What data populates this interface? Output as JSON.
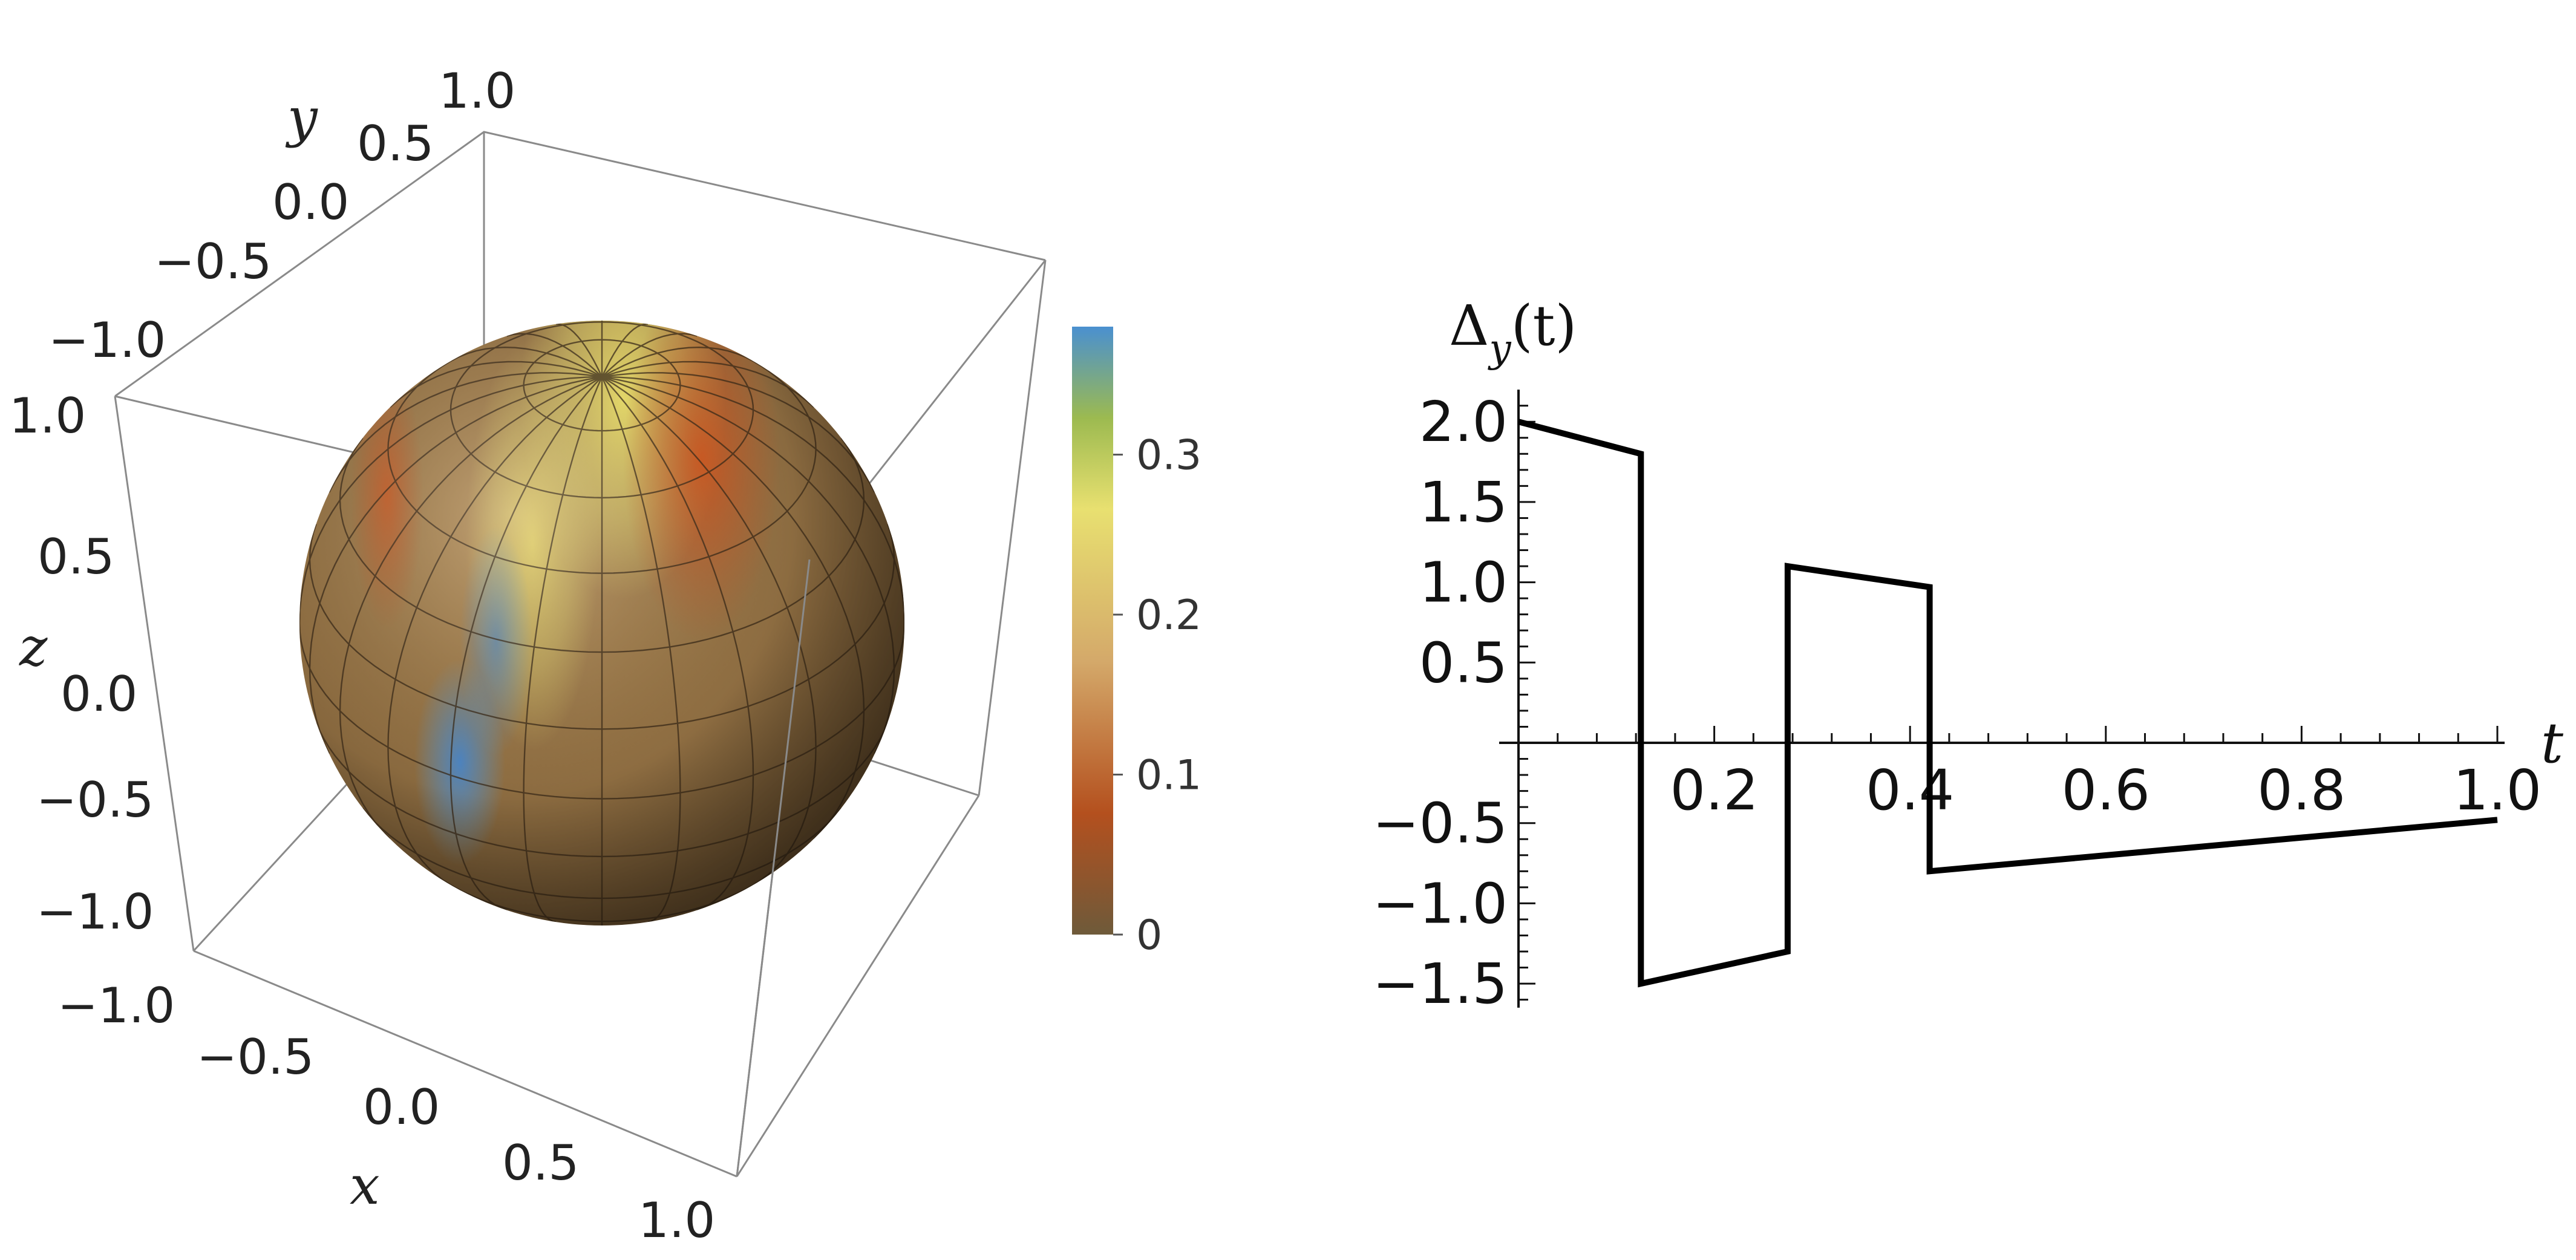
{
  "chart_data": [
    {
      "type": "surface3d",
      "description": "unit sphere colored by a scalar field with colorbar",
      "axes": {
        "x": {
          "label": "x",
          "range": [
            -1.0,
            1.0
          ],
          "ticks": [
            "−1.0",
            "−0.5",
            "0.0",
            "0.5",
            "1.0"
          ]
        },
        "y": {
          "label": "y",
          "range": [
            -1.0,
            1.0
          ],
          "ticks": [
            "−1.0",
            "−0.5",
            "0.0",
            "0.5",
            "1.0"
          ]
        },
        "z": {
          "label": "z",
          "range": [
            -1.0,
            1.0
          ],
          "ticks": [
            "−1.0",
            "−0.5",
            "0.0",
            "0.5",
            "1.0"
          ]
        }
      },
      "colorbar": {
        "range": [
          0,
          0.38
        ],
        "ticks": [
          "0",
          "0.1",
          "0.2",
          "0.3"
        ],
        "tick_values": [
          0,
          0.1,
          0.2,
          0.3
        ],
        "stops": [
          "#6e5a3a",
          "#b4501e",
          "#d4a96a",
          "#e8e070",
          "#9cba50",
          "#4a90d0"
        ]
      }
    },
    {
      "type": "line",
      "title": "",
      "xlabel": "t",
      "ylabel_base": "Δ",
      "ylabel_sub": "y",
      "ylabel_rest": "(t)",
      "xlim": [
        0,
        1.0
      ],
      "ylim": [
        -1.65,
        2.2
      ],
      "x_ticks": [
        0.2,
        0.4,
        0.6,
        0.8,
        1.0
      ],
      "x_tick_labels": [
        "0.2",
        "0.4",
        "0.6",
        "0.8",
        "1.0"
      ],
      "y_ticks": [
        -1.5,
        -1.0,
        -0.5,
        0.5,
        1.0,
        1.5,
        2.0
      ],
      "y_tick_labels": [
        "−1.5",
        "−1.0",
        "−0.5",
        "0.5",
        "1.0",
        "1.5",
        "2.0"
      ],
      "series": [
        {
          "x": [
            0,
            0.125,
            0.125,
            0.275,
            0.275,
            0.42,
            0.42,
            1.0
          ],
          "y": [
            2.0,
            1.8,
            -1.5,
            -1.3,
            1.1,
            0.97,
            -0.8,
            -0.48
          ]
        }
      ]
    }
  ]
}
